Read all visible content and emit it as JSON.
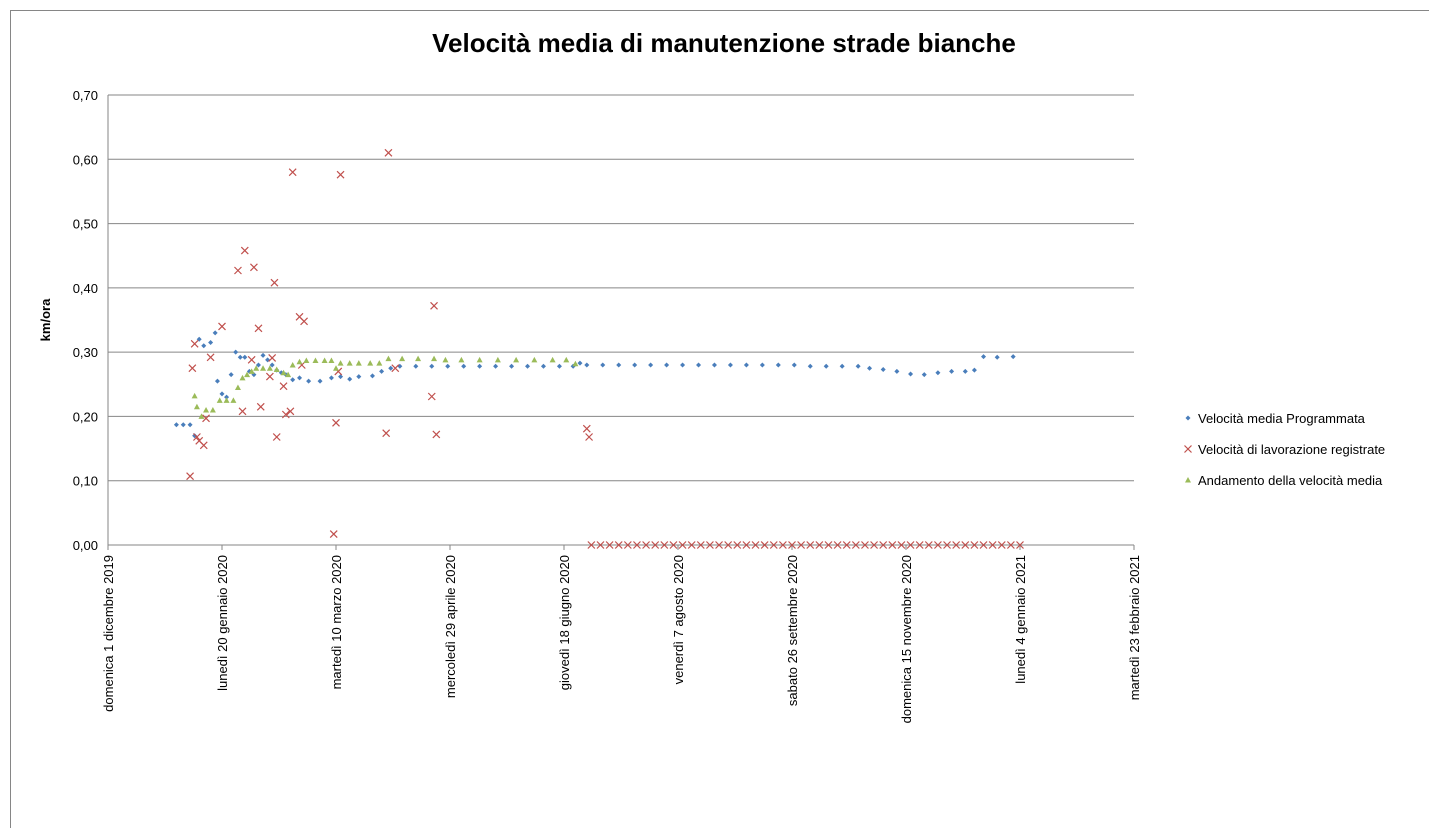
{
  "chart_data": {
    "type": "scatter",
    "title": "Velocità media di manutenzione strade bianche",
    "ylabel": "km/ora",
    "xlim": [
      "2019-12-01",
      "2021-02-23"
    ],
    "xticks": [
      {
        "value": "2019-12-01",
        "label": "domenica 1 dicembre 2019"
      },
      {
        "value": "2020-01-20",
        "label": "lunedì 20 gennaio 2020"
      },
      {
        "value": "2020-03-10",
        "label": "martedì 10 marzo 2020"
      },
      {
        "value": "2020-04-29",
        "label": "mercoledì 29 aprile 2020"
      },
      {
        "value": "2020-06-18",
        "label": "giovedì 18 giugno 2020"
      },
      {
        "value": "2020-08-07",
        "label": "venerdì 7 agosto 2020"
      },
      {
        "value": "2020-09-26",
        "label": "sabato 26 settembre 2020"
      },
      {
        "value": "2020-11-15",
        "label": "domenica 15 novembre 2020"
      },
      {
        "value": "2021-01-04",
        "label": "lunedì 4 gennaio 2021"
      },
      {
        "value": "2021-02-23",
        "label": "martedì 23 febbraio 2021"
      }
    ],
    "ylim": [
      0,
      0.7
    ],
    "yticks": [
      {
        "value": 0,
        "label": "0,00"
      },
      {
        "value": 0.1,
        "label": "0,10"
      },
      {
        "value": 0.2,
        "label": "0,20"
      },
      {
        "value": 0.3,
        "label": "0,30"
      },
      {
        "value": 0.4,
        "label": "0,40"
      },
      {
        "value": 0.5,
        "label": "0,50"
      },
      {
        "value": 0.6,
        "label": "0,60"
      },
      {
        "value": 0.7,
        "label": "0,70"
      }
    ],
    "grid": true,
    "legend": "right",
    "series": [
      {
        "name": "Velocità media Programmata",
        "color": "#4a7ebb",
        "marker": "diamond",
        "x": [
          "2019-12-31",
          "2020-01-03",
          "2020-01-06",
          "2020-01-08",
          "2020-01-10",
          "2020-01-12",
          "2020-01-15",
          "2020-01-17",
          "2020-01-18",
          "2020-01-20",
          "2020-01-22",
          "2020-01-24",
          "2020-01-26",
          "2020-01-28",
          "2020-01-30",
          "2020-02-01",
          "2020-02-03",
          "2020-02-05",
          "2020-02-07",
          "2020-02-09",
          "2020-02-11",
          "2020-02-13",
          "2020-02-15",
          "2020-02-17",
          "2020-02-20",
          "2020-02-23",
          "2020-02-27",
          "2020-03-03",
          "2020-03-08",
          "2020-03-12",
          "2020-03-16",
          "2020-03-20",
          "2020-03-26",
          "2020-03-30",
          "2020-04-03",
          "2020-04-07",
          "2020-04-14",
          "2020-04-21",
          "2020-04-28",
          "2020-05-05",
          "2020-05-12",
          "2020-05-19",
          "2020-05-26",
          "2020-06-02",
          "2020-06-09",
          "2020-06-16",
          "2020-06-22",
          "2020-06-25",
          "2020-06-28",
          "2020-07-05",
          "2020-07-12",
          "2020-07-19",
          "2020-07-26",
          "2020-08-02",
          "2020-08-09",
          "2020-08-16",
          "2020-08-23",
          "2020-08-30",
          "2020-09-06",
          "2020-09-13",
          "2020-09-20",
          "2020-09-27",
          "2020-10-04",
          "2020-10-11",
          "2020-10-18",
          "2020-10-25",
          "2020-10-30",
          "2020-11-05",
          "2020-11-11",
          "2020-11-17",
          "2020-11-23",
          "2020-11-29",
          "2020-12-05",
          "2020-12-11",
          "2020-12-15",
          "2020-12-19",
          "2020-12-25",
          "2021-01-01"
        ],
        "values": [
          0.187,
          0.187,
          0.187,
          0.17,
          0.32,
          0.31,
          0.315,
          0.33,
          0.255,
          0.235,
          0.23,
          0.265,
          0.3,
          0.292,
          0.292,
          0.27,
          0.265,
          0.28,
          0.295,
          0.288,
          0.28,
          0.272,
          0.268,
          0.265,
          0.257,
          0.26,
          0.255,
          0.255,
          0.26,
          0.262,
          0.258,
          0.262,
          0.263,
          0.27,
          0.275,
          0.278,
          0.278,
          0.278,
          0.278,
          0.278,
          0.278,
          0.278,
          0.278,
          0.278,
          0.278,
          0.278,
          0.278,
          0.283,
          0.28,
          0.28,
          0.28,
          0.28,
          0.28,
          0.28,
          0.28,
          0.28,
          0.28,
          0.28,
          0.28,
          0.28,
          0.28,
          0.28,
          0.278,
          0.278,
          0.278,
          0.278,
          0.275,
          0.273,
          0.27,
          0.266,
          0.265,
          0.268,
          0.27,
          0.27,
          0.272,
          0.293,
          0.292,
          0.293
        ]
      },
      {
        "name": "Velocità di lavorazione registrate",
        "color": "#c0504d",
        "marker": "cross",
        "x": [
          "2020-01-06",
          "2020-01-07",
          "2020-01-08",
          "2020-01-09",
          "2020-01-10",
          "2020-01-12",
          "2020-01-13",
          "2020-01-15",
          "2020-01-20",
          "2020-01-27",
          "2020-01-29",
          "2020-01-30",
          "2020-02-02",
          "2020-02-03",
          "2020-02-05",
          "2020-02-06",
          "2020-02-10",
          "2020-02-11",
          "2020-02-12",
          "2020-02-13",
          "2020-02-16",
          "2020-02-17",
          "2020-02-19",
          "2020-02-20",
          "2020-02-23",
          "2020-02-24",
          "2020-02-25",
          "2020-03-09",
          "2020-03-10",
          "2020-03-11",
          "2020-03-12",
          "2020-04-01",
          "2020-04-02",
          "2020-04-05",
          "2020-04-21",
          "2020-04-22",
          "2020-04-23",
          "2020-06-28",
          "2020-06-29",
          "2020-06-30",
          "2020-07-04",
          "2020-07-08",
          "2020-07-12",
          "2020-07-16",
          "2020-07-20",
          "2020-07-24",
          "2020-07-28",
          "2020-08-01",
          "2020-08-05",
          "2020-08-09",
          "2020-08-13",
          "2020-08-17",
          "2020-08-21",
          "2020-08-25",
          "2020-08-29",
          "2020-09-02",
          "2020-09-06",
          "2020-09-10",
          "2020-09-14",
          "2020-09-18",
          "2020-09-22",
          "2020-09-26",
          "2020-09-30",
          "2020-10-04",
          "2020-10-08",
          "2020-10-12",
          "2020-10-16",
          "2020-10-20",
          "2020-10-24",
          "2020-10-28",
          "2020-11-01",
          "2020-11-05",
          "2020-11-09",
          "2020-11-13",
          "2020-11-17",
          "2020-11-21",
          "2020-11-25",
          "2020-11-29",
          "2020-12-03",
          "2020-12-07",
          "2020-12-11",
          "2020-12-15",
          "2020-12-19",
          "2020-12-23",
          "2020-12-27",
          "2020-12-31",
          "2021-01-04"
        ],
        "values": [
          0.107,
          0.275,
          0.313,
          0.168,
          0.162,
          0.155,
          0.197,
          0.292,
          0.34,
          0.427,
          0.208,
          0.458,
          0.288,
          0.432,
          0.337,
          0.215,
          0.262,
          0.291,
          0.408,
          0.168,
          0.247,
          0.203,
          0.208,
          0.58,
          0.355,
          0.28,
          0.348,
          0.017,
          0.19,
          0.27,
          0.576,
          0.174,
          0.61,
          0.275,
          0.231,
          0.372,
          0.172,
          0.181,
          0.168,
          0,
          0,
          0,
          0,
          0,
          0,
          0,
          0,
          0,
          0,
          0,
          0,
          0,
          0,
          0,
          0,
          0,
          0,
          0,
          0,
          0,
          0,
          0,
          0,
          0,
          0,
          0,
          0,
          0,
          0,
          0,
          0,
          0,
          0,
          0,
          0,
          0,
          0,
          0,
          0,
          0,
          0,
          0,
          0,
          0,
          0,
          0,
          0
        ]
      },
      {
        "name": "Andamento della velocità media",
        "color": "#9bbb59",
        "marker": "triangle",
        "x": [
          "2020-01-08",
          "2020-01-09",
          "2020-01-11",
          "2020-01-13",
          "2020-01-16",
          "2020-01-19",
          "2020-01-22",
          "2020-01-25",
          "2020-01-27",
          "2020-01-29",
          "2020-01-31",
          "2020-02-02",
          "2020-02-04",
          "2020-02-07",
          "2020-02-10",
          "2020-02-13",
          "2020-02-16",
          "2020-02-18",
          "2020-02-20",
          "2020-02-23",
          "2020-02-26",
          "2020-03-01",
          "2020-03-05",
          "2020-03-08",
          "2020-03-10",
          "2020-03-12",
          "2020-03-16",
          "2020-03-20",
          "2020-03-25",
          "2020-03-29",
          "2020-04-02",
          "2020-04-08",
          "2020-04-15",
          "2020-04-22",
          "2020-04-27",
          "2020-05-04",
          "2020-05-12",
          "2020-05-20",
          "2020-05-28",
          "2020-06-05",
          "2020-06-13",
          "2020-06-19",
          "2020-06-23"
        ],
        "values": [
          0.232,
          0.215,
          0.2,
          0.21,
          0.21,
          0.225,
          0.225,
          0.225,
          0.245,
          0.26,
          0.265,
          0.27,
          0.275,
          0.275,
          0.275,
          0.273,
          0.268,
          0.265,
          0.28,
          0.285,
          0.287,
          0.287,
          0.287,
          0.287,
          0.275,
          0.283,
          0.283,
          0.283,
          0.283,
          0.283,
          0.29,
          0.29,
          0.29,
          0.29,
          0.288,
          0.288,
          0.288,
          0.288,
          0.288,
          0.288,
          0.288,
          0.288,
          0.282
        ]
      }
    ]
  }
}
